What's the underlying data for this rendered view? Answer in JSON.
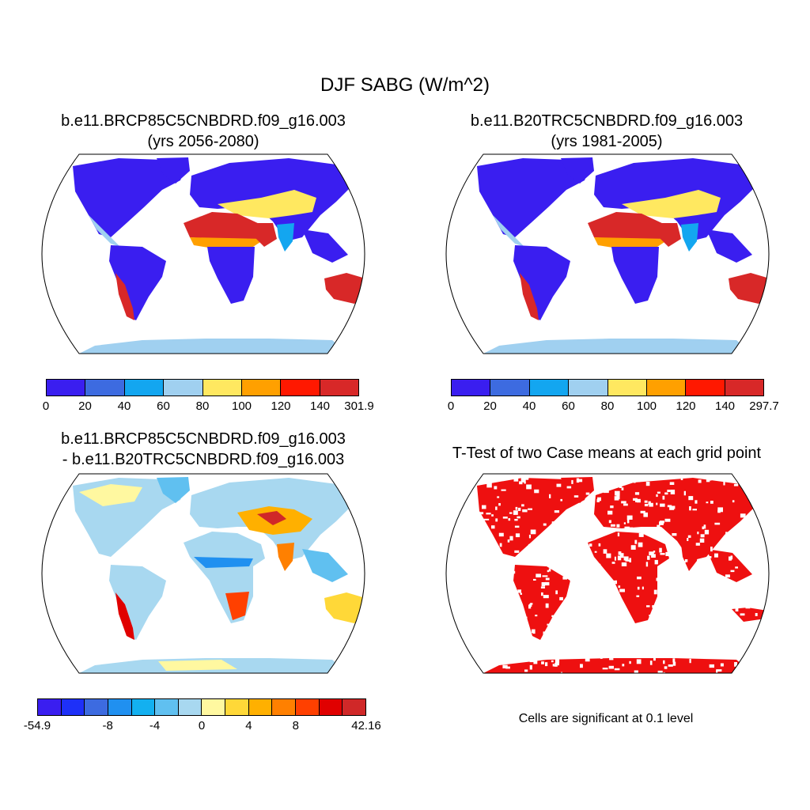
{
  "title": "DJF SABG (W/m^2)",
  "panels": [
    {
      "title_line1": "b.e11.BRCP85C5CNBDRD.f09_g16.003",
      "title_line2": "(yrs 2056-2080)",
      "colorbar": {
        "labels": [
          "0",
          "20",
          "40",
          "60",
          "80",
          "100",
          "120",
          "140",
          "301.9"
        ],
        "colors": [
          "#3a1ef0",
          "#3d6be0",
          "#13a6f0",
          "#a0d0f0",
          "#ffe860",
          "#ffa000",
          "#ff1800",
          "#d82828"
        ]
      }
    },
    {
      "title_line1": "b.e11.B20TRC5CNBDRD.f09_g16.003",
      "title_line2": "(yrs 1981-2005)",
      "colorbar": {
        "labels": [
          "0",
          "20",
          "40",
          "60",
          "80",
          "100",
          "120",
          "140",
          "297.7"
        ],
        "colors": [
          "#3a1ef0",
          "#3d6be0",
          "#13a6f0",
          "#a0d0f0",
          "#ffe860",
          "#ffa000",
          "#ff1800",
          "#d82828"
        ]
      }
    },
    {
      "title_line1": "b.e11.BRCP85C5CNBDRD.f09_g16.003",
      "title_line2": "- b.e11.B20TRC5CNBDRD.f09_g16.003",
      "colorbar": {
        "labels": [
          "-54.9",
          "-8",
          "-4",
          "0",
          "4",
          "8",
          "42.16"
        ],
        "colors": [
          "#3a1ef0",
          "#1e30f8",
          "#3d6be0",
          "#2090f0",
          "#13b0f0",
          "#60c0f0",
          "#a8d8f0",
          "#fff8a0",
          "#ffd838",
          "#ffb000",
          "#ff8000",
          "#ff4000",
          "#e00000",
          "#d02828"
        ]
      }
    },
    {
      "title_line1": "T-Test of two Case means at each grid point",
      "note": "Cells are significant at 0.1 level",
      "fill_color": "#ee1010"
    }
  ]
}
